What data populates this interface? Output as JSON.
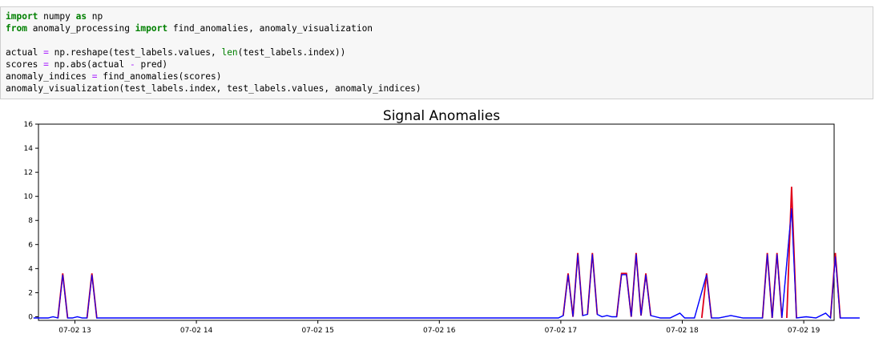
{
  "code_cell": {
    "lines": [
      [
        {
          "t": "import",
          "c": "kw"
        },
        {
          "t": " numpy ",
          "c": ""
        },
        {
          "t": "as",
          "c": "kw"
        },
        {
          "t": " np",
          "c": ""
        }
      ],
      [
        {
          "t": "from",
          "c": "kw"
        },
        {
          "t": " anomaly_processing ",
          "c": ""
        },
        {
          "t": "import",
          "c": "kw"
        },
        {
          "t": " find_anomalies, anomaly_visualization",
          "c": ""
        }
      ],
      [],
      [
        {
          "t": "actual ",
          "c": ""
        },
        {
          "t": "=",
          "c": "op"
        },
        {
          "t": " np.reshape(test_labels.values, ",
          "c": ""
        },
        {
          "t": "len",
          "c": "bi"
        },
        {
          "t": "(test_labels.index))",
          "c": ""
        }
      ],
      [
        {
          "t": "scores ",
          "c": ""
        },
        {
          "t": "=",
          "c": "op"
        },
        {
          "t": " np.abs(actual ",
          "c": ""
        },
        {
          "t": "-",
          "c": "op"
        },
        {
          "t": " pred)",
          "c": ""
        }
      ],
      [
        {
          "t": "anomaly_indices ",
          "c": ""
        },
        {
          "t": "=",
          "c": "op"
        },
        {
          "t": " find_anomalies(scores)",
          "c": ""
        }
      ],
      [
        {
          "t": "anomaly_visualization(test_labels.index, test_labels.values, anomaly_indices)",
          "c": ""
        }
      ]
    ]
  },
  "chart_data": {
    "type": "line",
    "title": "Signal Anomalies",
    "xlabel": "",
    "ylabel": "",
    "ylim": [
      -0.3,
      16
    ],
    "xlim": [
      12.7,
      19.25
    ],
    "y_ticks": [
      0,
      2,
      4,
      6,
      8,
      10,
      12,
      14,
      16
    ],
    "x_ticks": [
      {
        "value": 13,
        "label": "07-02 13"
      },
      {
        "value": 14,
        "label": "07-02 14"
      },
      {
        "value": 15,
        "label": "07-02 15"
      },
      {
        "value": 16,
        "label": "07-02 16"
      },
      {
        "value": 17,
        "label": "07-02 17"
      },
      {
        "value": 18,
        "label": "07-02 18"
      },
      {
        "value": 19,
        "label": "07-02 19"
      }
    ],
    "series": [
      {
        "color": "#0000ff",
        "points": [
          [
            12.66,
            -0.1
          ],
          [
            12.75,
            -0.1
          ],
          [
            12.78,
            -0.1
          ],
          [
            12.82,
            0
          ],
          [
            12.86,
            -0.1
          ],
          [
            12.9,
            3.5
          ],
          [
            12.94,
            -0.1
          ],
          [
            12.98,
            -0.1
          ],
          [
            13.02,
            0
          ],
          [
            13.06,
            -0.1
          ],
          [
            13.1,
            -0.1
          ],
          [
            13.14,
            3.5
          ],
          [
            13.18,
            -0.1
          ],
          [
            13.5,
            -0.1
          ],
          [
            14,
            -0.1
          ],
          [
            15,
            -0.1
          ],
          [
            16,
            -0.1
          ],
          [
            16.8,
            -0.1
          ],
          [
            16.98,
            -0.1
          ],
          [
            17.02,
            0.1
          ],
          [
            17.06,
            3.5
          ],
          [
            17.1,
            0
          ],
          [
            17.14,
            5.2
          ],
          [
            17.18,
            0.1
          ],
          [
            17.22,
            0.2
          ],
          [
            17.26,
            5.2
          ],
          [
            17.3,
            0.2
          ],
          [
            17.34,
            0
          ],
          [
            17.38,
            0.1
          ],
          [
            17.42,
            0
          ],
          [
            17.46,
            0
          ],
          [
            17.5,
            3.5
          ],
          [
            17.54,
            3.5
          ],
          [
            17.58,
            0
          ],
          [
            17.62,
            5.2
          ],
          [
            17.66,
            0.1
          ],
          [
            17.7,
            3.5
          ],
          [
            17.74,
            0.1
          ],
          [
            17.78,
            0
          ],
          [
            17.82,
            -0.1
          ],
          [
            17.9,
            -0.1
          ],
          [
            17.98,
            0.3
          ],
          [
            18.02,
            -0.1
          ],
          [
            18.1,
            -0.1
          ],
          [
            18.2,
            3.5
          ],
          [
            18.24,
            -0.1
          ],
          [
            18.3,
            -0.1
          ],
          [
            18.4,
            0.1
          ],
          [
            18.5,
            -0.1
          ],
          [
            18.6,
            -0.1
          ],
          [
            18.66,
            -0.1
          ],
          [
            18.7,
            5.2
          ],
          [
            18.74,
            -0.1
          ],
          [
            18.78,
            5.2
          ],
          [
            18.82,
            -0.1
          ],
          [
            18.9,
            9
          ],
          [
            18.94,
            -0.1
          ],
          [
            19.02,
            0
          ],
          [
            19.1,
            -0.1
          ],
          [
            19.18,
            0.3
          ],
          [
            19.22,
            -0.1
          ],
          [
            19.26,
            5
          ],
          [
            19.3,
            -0.1
          ],
          [
            19.4,
            -0.1
          ],
          [
            19.46,
            -0.1
          ]
        ]
      },
      {
        "color": "#e0001a",
        "segments": [
          [
            [
              12.86,
              -0.1
            ],
            [
              12.9,
              3.6
            ],
            [
              12.94,
              -0.1
            ]
          ],
          [
            [
              13.1,
              -0.1
            ],
            [
              13.14,
              3.6
            ],
            [
              13.18,
              -0.1
            ]
          ],
          [
            [
              17.02,
              0.1
            ],
            [
              17.06,
              3.6
            ],
            [
              17.1,
              0
            ]
          ],
          [
            [
              17.1,
              0
            ],
            [
              17.14,
              5.3
            ],
            [
              17.18,
              0.1
            ]
          ],
          [
            [
              17.22,
              0.2
            ],
            [
              17.26,
              5.3
            ],
            [
              17.3,
              0.2
            ]
          ],
          [
            [
              17.46,
              0
            ],
            [
              17.5,
              3.6
            ],
            [
              17.54,
              3.6
            ],
            [
              17.58,
              0
            ]
          ],
          [
            [
              17.58,
              0
            ],
            [
              17.62,
              5.3
            ],
            [
              17.66,
              0.1
            ]
          ],
          [
            [
              17.66,
              0.1
            ],
            [
              17.7,
              3.6
            ],
            [
              17.74,
              0.1
            ]
          ],
          [
            [
              18.16,
              -0.1
            ],
            [
              18.2,
              3.6
            ],
            [
              18.24,
              -0.1
            ]
          ],
          [
            [
              18.66,
              -0.1
            ],
            [
              18.7,
              5.3
            ],
            [
              18.74,
              -0.1
            ]
          ],
          [
            [
              18.74,
              -0.1
            ],
            [
              18.78,
              5.3
            ],
            [
              18.82,
              -0.1
            ]
          ],
          [
            [
              18.86,
              -0.1
            ],
            [
              18.9,
              10.8
            ],
            [
              18.94,
              -0.1
            ]
          ],
          [
            [
              19.22,
              -0.1
            ],
            [
              19.26,
              5.3
            ],
            [
              19.3,
              -0.1
            ]
          ]
        ]
      }
    ],
    "grid": false,
    "legend": "none"
  }
}
